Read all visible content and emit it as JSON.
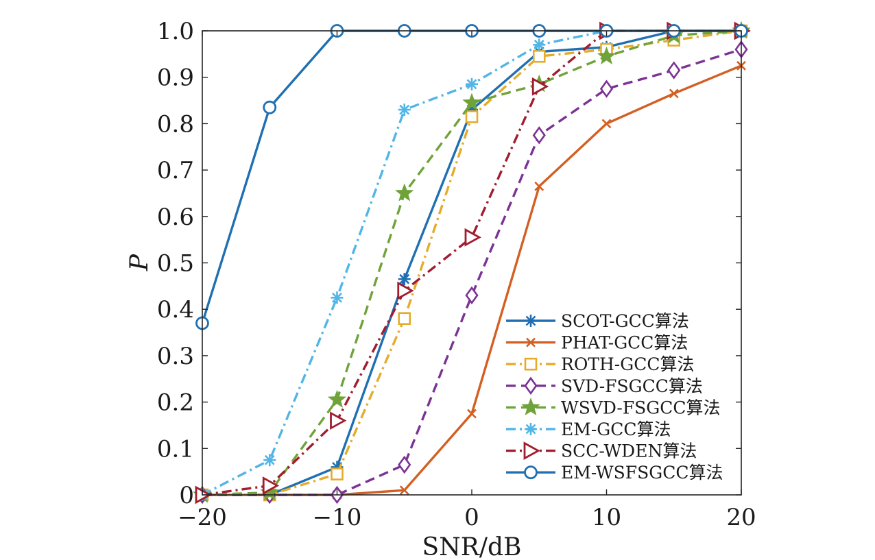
{
  "chart_data": {
    "type": "line",
    "xlabel": "SNR/dB",
    "ylabel": "P",
    "xlim": [
      -20,
      20
    ],
    "ylim": [
      0,
      1.0
    ],
    "x": [
      -20,
      -15,
      -10,
      -5,
      0,
      5,
      10,
      15,
      20
    ],
    "xticks": [
      "−20",
      "−10",
      "0",
      "10",
      "20"
    ],
    "xtick_values": [
      -20,
      -10,
      0,
      10,
      20
    ],
    "yticks": [
      "0",
      "0.1",
      "0.2",
      "0.3",
      "0.4",
      "0.5",
      "0.6",
      "0.7",
      "0.8",
      "0.9",
      "1.0"
    ],
    "ytick_values": [
      0,
      0.1,
      0.2,
      0.3,
      0.4,
      0.5,
      0.6,
      0.7,
      0.8,
      0.9,
      1.0
    ],
    "grid": false,
    "legend_position": "bottom-right",
    "series": [
      {
        "name": "SCOT-GCC算法",
        "color": "#1f6fb2",
        "dash": "solid",
        "marker": "asterisk",
        "values": [
          0,
          0,
          0.06,
          0.465,
          0.83,
          0.955,
          0.965,
          1.0,
          1.0
        ]
      },
      {
        "name": "PHAT-GCC算法",
        "color": "#d35f22",
        "dash": "solid",
        "marker": "x",
        "values": [
          0,
          0,
          0,
          0.01,
          0.175,
          0.665,
          0.8,
          0.865,
          0.925
        ]
      },
      {
        "name": "ROTH-GCC算法",
        "color": "#e5ab2b",
        "dash": "dashdot",
        "marker": "square",
        "values": [
          0,
          0,
          0.045,
          0.38,
          0.815,
          0.945,
          0.96,
          0.98,
          1.0
        ]
      },
      {
        "name": "SVD-FSGCC算法",
        "color": "#7b3294",
        "dash": "dash",
        "marker": "diamond",
        "values": [
          0,
          0,
          0,
          0.065,
          0.43,
          0.775,
          0.875,
          0.915,
          0.96
        ]
      },
      {
        "name": "WSVD-FSGCC算法",
        "color": "#6fa33a",
        "dash": "dash",
        "marker": "star",
        "values": [
          0,
          0.005,
          0.205,
          0.65,
          0.845,
          0.885,
          0.945,
          0.99,
          1.0
        ]
      },
      {
        "name": "EM-GCC算法",
        "color": "#52b5e6",
        "dash": "dashdot",
        "marker": "asterisk",
        "values": [
          0,
          0.075,
          0.425,
          0.83,
          0.885,
          0.97,
          1.0,
          1.0,
          1.0
        ]
      },
      {
        "name": "SCC-WDEN算法",
        "color": "#a11d2e",
        "dash": "dashdot",
        "marker": "triangle-right",
        "values": [
          0,
          0.02,
          0.16,
          0.44,
          0.555,
          0.88,
          1.0,
          1.0,
          1.0
        ]
      },
      {
        "name": "EM-WSFSGCC算法",
        "color": "#1f6fb2",
        "dash": "solid",
        "marker": "circle",
        "values": [
          0.37,
          0.835,
          1.0,
          1.0,
          1.0,
          1.0,
          1.0,
          1.0,
          1.0
        ]
      }
    ]
  }
}
